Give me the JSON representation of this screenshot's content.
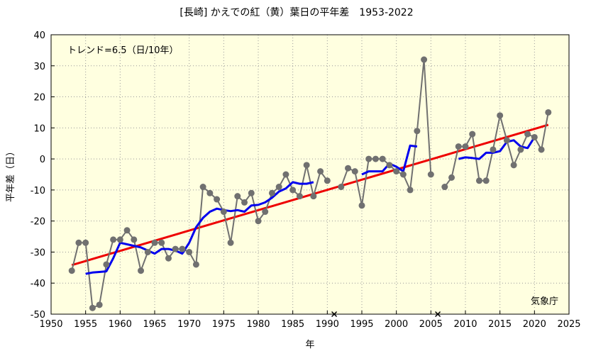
{
  "chart_data": {
    "type": "line",
    "title": "[長崎] かえでの紅（黄）葉日の平年差　1953-2022",
    "xlabel": "年",
    "ylabel": "平年差（日）",
    "trend_label": "トレンド=6.5（日/10年）",
    "credit": "気象庁",
    "xlim": [
      1950,
      2025
    ],
    "ylim": [
      -50,
      40
    ],
    "x_ticks": [
      1950,
      1955,
      1960,
      1965,
      1970,
      1975,
      1980,
      1985,
      1990,
      1995,
      2000,
      2005,
      2010,
      2015,
      2020,
      2025
    ],
    "y_ticks": [
      -50,
      -40,
      -30,
      -20,
      -10,
      0,
      10,
      20,
      30,
      40
    ],
    "grid": true,
    "series": [
      {
        "role": "annual",
        "color": "#707070",
        "x": [
          1953,
          1954,
          1955,
          1956,
          1957,
          1958,
          1959,
          1960,
          1961,
          1962,
          1963,
          1964,
          1965,
          1966,
          1967,
          1968,
          1969,
          1970,
          1971,
          1972,
          1973,
          1974,
          1975,
          1976,
          1977,
          1978,
          1979,
          1980,
          1981,
          1982,
          1983,
          1984,
          1985,
          1986,
          1987,
          1988,
          1989,
          1990,
          1991,
          1992,
          1993,
          1994,
          1995,
          1996,
          1997,
          1998,
          1999,
          2000,
          2001,
          2002,
          2003,
          2004,
          2005,
          2006,
          2007,
          2008,
          2009,
          2010,
          2011,
          2012,
          2013,
          2014,
          2015,
          2016,
          2017,
          2018,
          2019,
          2020,
          2021,
          2022
        ],
        "values": [
          -36,
          -27,
          -27,
          -48,
          -47,
          -34,
          -26,
          -26,
          -23,
          -26,
          -36,
          -30,
          -27,
          -27,
          -32,
          -29,
          -29,
          -30,
          -34,
          -9,
          -11,
          -13,
          -17,
          -27,
          -12,
          -14,
          -11,
          -20,
          -17,
          -11,
          -9,
          -5,
          -10,
          -12,
          -2,
          -12,
          -4,
          -7,
          null,
          -9,
          -3,
          -4,
          -15,
          0,
          0,
          0,
          -2,
          -4,
          -5,
          -10,
          9,
          32,
          -5,
          null,
          -9,
          -6,
          4,
          4,
          8,
          -7,
          -7,
          3,
          14,
          6,
          -2,
          3,
          8,
          7,
          3,
          15
        ]
      },
      {
        "role": "moving-average-5yr",
        "color": "#0000ee",
        "segments": [
          {
            "x": [
              1955,
              1956,
              1957,
              1958,
              1959,
              1960,
              1961,
              1962,
              1963,
              1964,
              1965,
              1966,
              1967,
              1968,
              1969,
              1970,
              1971,
              1972,
              1973,
              1974,
              1975,
              1976,
              1977,
              1978,
              1979,
              1980,
              1981,
              1982,
              1983,
              1984,
              1985,
              1986,
              1987,
              1988
            ],
            "values": [
              -37,
              -36.6,
              -36.4,
              -36.2,
              -32,
              -27,
              -27.5,
              -28,
              -28.5,
              -29.5,
              -30.5,
              -29,
              -29,
              -29.5,
              -30.5,
              -27,
              -22,
              -19,
              -17,
              -16,
              -16.5,
              -16.8,
              -16.5,
              -17,
              -15,
              -14.8,
              -14,
              -12.5,
              -10.5,
              -9.5,
              -7.5,
              -8,
              -8,
              -7.5
            ]
          },
          {
            "x": [
              1995,
              1996,
              1997,
              1998,
              1999,
              2000,
              2001,
              2002,
              2003
            ],
            "values": [
              -5,
              -4,
              -4,
              -4,
              -1.5,
              -2.5,
              -4,
              4.3,
              4
            ]
          },
          {
            "x": [
              2009,
              2010,
              2011,
              2012,
              2013,
              2014,
              2015,
              2016,
              2017,
              2018,
              2019,
              2020
            ],
            "values": [
              0,
              0.5,
              0.3,
              0,
              2,
              2,
              2.5,
              5.5,
              6,
              4,
              3.5,
              7
            ]
          }
        ]
      },
      {
        "role": "trend",
        "color": "#ee0000",
        "x": [
          1953,
          2022
        ],
        "values": [
          -34.2,
          11.0
        ]
      }
    ],
    "missing_markers": [
      1991,
      2006
    ]
  }
}
